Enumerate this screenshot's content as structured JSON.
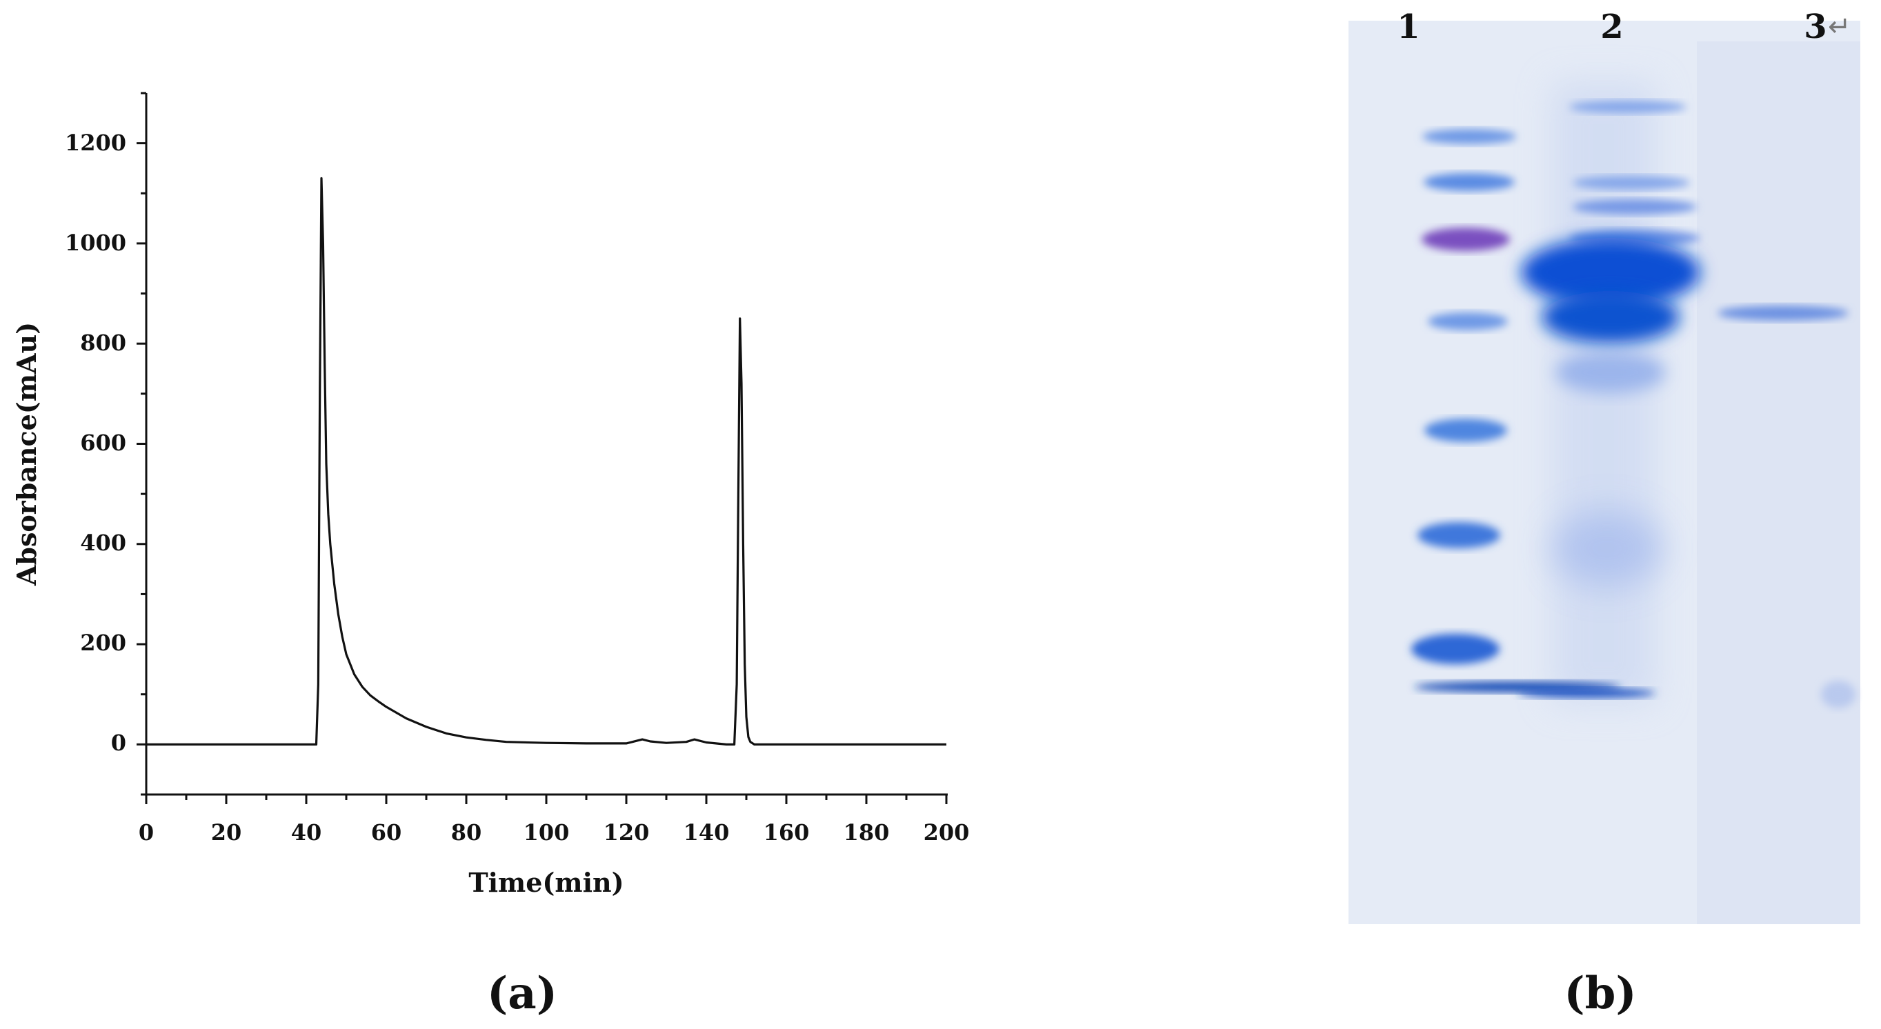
{
  "chart_data": {
    "type": "line",
    "xlabel": "Time(min)",
    "ylabel": "Absorbance(mAu)",
    "xlim": [
      0,
      200
    ],
    "ylim": [
      -100,
      1300
    ],
    "xticks": [
      "0",
      "20",
      "40",
      "60",
      "80",
      "100",
      "120",
      "140",
      "160",
      "180",
      "200"
    ],
    "yticks": [
      "0",
      "200",
      "400",
      "600",
      "800",
      "1000",
      "1200"
    ],
    "grid": false,
    "series": [
      {
        "x": [
          0,
          10,
          20,
          30,
          40,
          42.5,
          43,
          43.4,
          43.8,
          44.2,
          44.6,
          45,
          45.5,
          46,
          47,
          48,
          49,
          50,
          52,
          54,
          56,
          58,
          60,
          65,
          70,
          75,
          80,
          85,
          90,
          100,
          110,
          120,
          124,
          126,
          130,
          135,
          137,
          140,
          145,
          147,
          147.6,
          148,
          148.4,
          148.8,
          149.2,
          149.6,
          150,
          150.5,
          151,
          152,
          155,
          160,
          180,
          200
        ],
        "y": [
          0,
          0,
          0,
          0,
          0,
          0,
          120,
          700,
          1130,
          1000,
          760,
          560,
          460,
          400,
          320,
          260,
          215,
          180,
          140,
          115,
          98,
          86,
          75,
          52,
          35,
          22,
          14,
          9,
          5,
          3,
          2,
          2,
          10,
          6,
          3,
          5,
          10,
          4,
          0,
          0,
          120,
          500,
          850,
          720,
          400,
          160,
          55,
          15,
          5,
          0,
          0,
          0,
          0,
          0
        ]
      }
    ]
  },
  "panels": {
    "a_label": "(a)",
    "b_label": "(b)"
  },
  "gel": {
    "lane_labels": [
      "1",
      "2",
      "3"
    ],
    "return_glyph": "↵",
    "background_color": "#e5ebf6",
    "band_color": "#1f5fd6"
  }
}
